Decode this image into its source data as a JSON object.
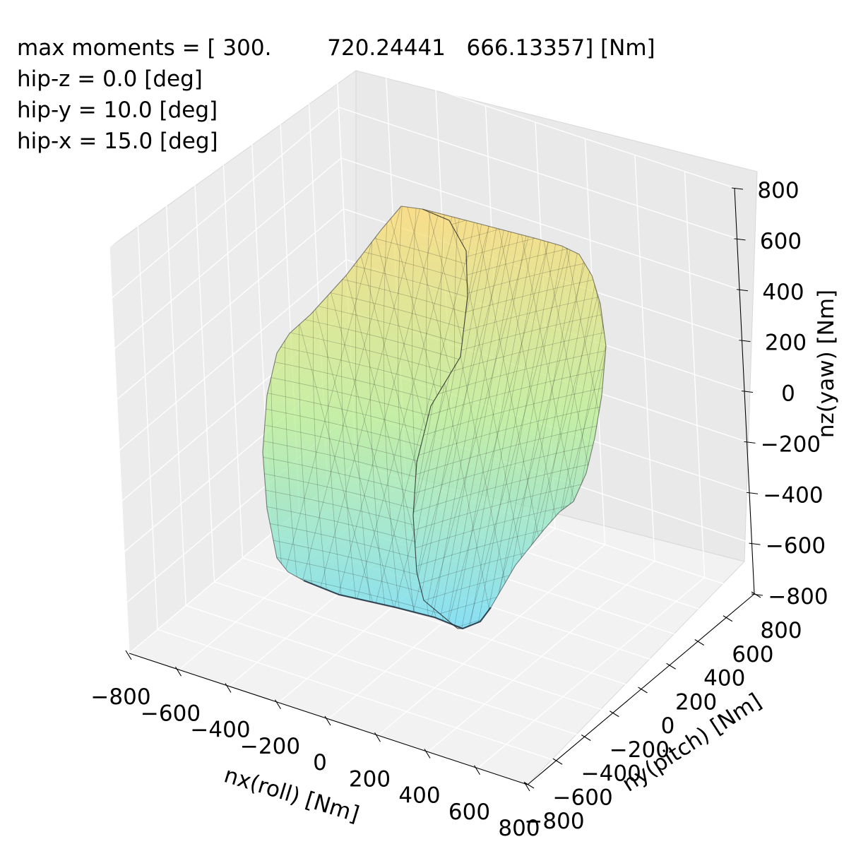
{
  "annotations": {
    "line1": "max moments = [ 300.        720.24441   666.13357] [Nm]",
    "line2": "hip-z = 0.0 [deg]",
    "line3": "hip-y = 10.0 [deg]",
    "line4": "hip-x = 15.0 [deg]"
  },
  "colors": {
    "pane_left": "#ececec",
    "pane_back": "#e9e9e9",
    "pane_floor": "#f2f2f2",
    "grid": "#ffffff",
    "surface_top": "#ffd966",
    "surface_mid": "#b6f08c",
    "surface_bottom": "#5fd8f5",
    "mesh_edges": "#1a1a1a"
  },
  "chart_data": {
    "type": "3d-surface",
    "title": "",
    "xlabel": "nx(roll) [Nm]",
    "ylabel": "ny(pitch) [Nm]",
    "zlabel": "nz(yaw) [Nm]",
    "xlim": [
      -800,
      800
    ],
    "ylim": [
      -800,
      800
    ],
    "zlim": [
      -800,
      800
    ],
    "x_ticks": [
      "−800",
      "−600",
      "−400",
      "−200",
      "0",
      "200",
      "400",
      "600",
      "800"
    ],
    "y_ticks": [
      "−800",
      "−600",
      "−400",
      "−200",
      "0",
      "200",
      "400",
      "600",
      "800"
    ],
    "z_ticks": [
      "−800",
      "−600",
      "−400",
      "−200",
      "0",
      "200",
      "400",
      "600",
      "800"
    ],
    "max_moments": [
      300.0,
      720.24441,
      666.13357
    ],
    "hip_z_deg": 0.0,
    "hip_y_deg": 10.0,
    "hip_x_deg": 15.0,
    "grid": true,
    "colormap": "cool-to-warm along nz"
  }
}
